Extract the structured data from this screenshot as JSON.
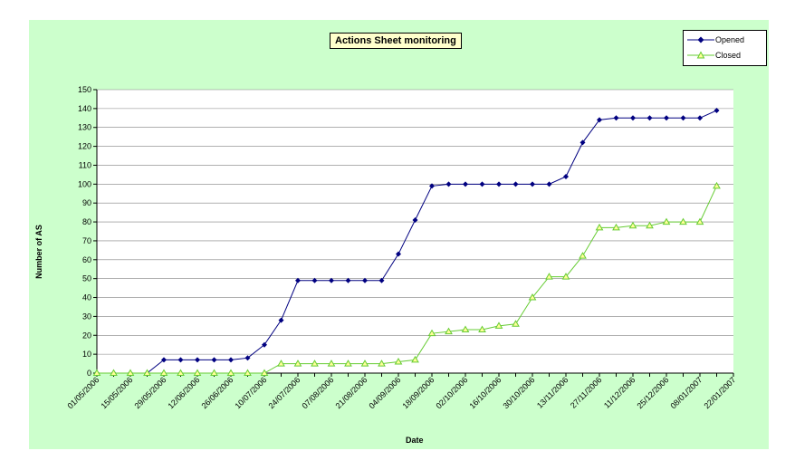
{
  "chart_data": {
    "type": "line",
    "title": "Actions Sheet monitoring",
    "xlabel": "Date",
    "ylabel": "Number of AS",
    "ylim": [
      0,
      150
    ],
    "yticks": [
      "0",
      "10",
      "20",
      "30",
      "40",
      "50",
      "60",
      "70",
      "80",
      "90",
      "100",
      "110",
      "120",
      "130",
      "140",
      "150"
    ],
    "x_tick_labels": [
      "01/05/2006",
      "15/05/2006",
      "29/05/2006",
      "12/06/2006",
      "26/06/2006",
      "10/07/2006",
      "24/07/2006",
      "07/08/2006",
      "21/08/2006",
      "04/09/2006",
      "18/09/2006",
      "02/10/2006",
      "16/10/2006",
      "30/10/2006",
      "13/11/2006",
      "27/11/2006",
      "11/12/2006",
      "25/12/2006",
      "08/01/2007",
      "22/01/2007"
    ],
    "x": [
      "01/05/2006",
      "08/05/2006",
      "15/05/2006",
      "22/05/2006",
      "29/05/2006",
      "05/06/2006",
      "12/06/2006",
      "19/06/2006",
      "26/06/2006",
      "03/07/2006",
      "10/07/2006",
      "17/07/2006",
      "24/07/2006",
      "31/07/2006",
      "07/08/2006",
      "14/08/2006",
      "21/08/2006",
      "28/08/2006",
      "04/09/2006",
      "11/09/2006",
      "18/09/2006",
      "25/09/2006",
      "02/10/2006",
      "09/10/2006",
      "16/10/2006",
      "23/10/2006",
      "30/10/2006",
      "06/11/2006",
      "13/11/2006",
      "20/11/2006",
      "27/11/2006",
      "04/12/2006",
      "11/12/2006",
      "18/12/2006",
      "25/12/2006",
      "01/01/2007",
      "08/01/2007",
      "15/01/2007"
    ],
    "series": [
      {
        "name": "Opened",
        "color": "#000080",
        "marker": "diamond",
        "values": [
          0,
          0,
          0,
          0,
          7,
          7,
          7,
          7,
          7,
          8,
          15,
          28,
          49,
          49,
          49,
          49,
          49,
          49,
          63,
          81,
          99,
          100,
          100,
          100,
          100,
          100,
          100,
          100,
          104,
          122,
          134,
          135,
          135,
          135,
          135,
          135,
          135,
          139
        ]
      },
      {
        "name": "Closed",
        "color": "#66cc33",
        "marker": "triangle",
        "values": [
          0,
          0,
          0,
          0,
          0,
          0,
          0,
          0,
          0,
          0,
          0,
          5,
          5,
          5,
          5,
          5,
          5,
          5,
          6,
          7,
          21,
          22,
          23,
          23,
          25,
          26,
          40,
          51,
          51,
          62,
          77,
          77,
          78,
          78,
          80,
          80,
          80,
          99
        ]
      }
    ],
    "grid": true,
    "legend_position": "top-right"
  }
}
